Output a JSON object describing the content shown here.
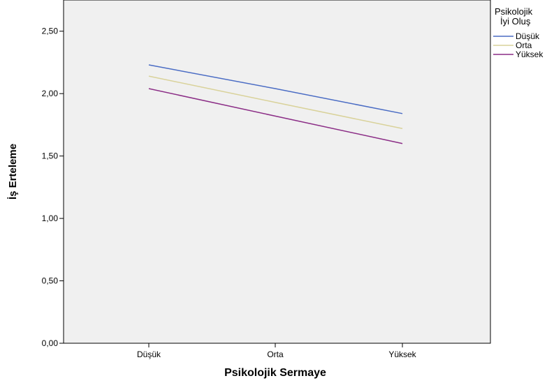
{
  "chart_data": {
    "type": "line",
    "categories": [
      "Düşük",
      "Orta",
      "Yüksek"
    ],
    "xlabel": "Psikolojik Sermaye",
    "ylabel": "İş Erteleme",
    "ylim": [
      0,
      2.75
    ],
    "yticks": [
      "0,00",
      "0,50",
      "1,00",
      "1,50",
      "2,00",
      "2,50"
    ],
    "ytick_values": [
      0,
      0.5,
      1.0,
      1.5,
      2.0,
      2.5
    ],
    "grid": false,
    "legend": {
      "title_line1": "Psikolojik",
      "title_line2": "İyi Oluş",
      "placement": "right"
    },
    "series": [
      {
        "name": "Düşük",
        "values": [
          2.23,
          2.04,
          1.84
        ],
        "color": "#4a6cc4"
      },
      {
        "name": "Orta",
        "values": [
          2.14,
          1.93,
          1.72
        ],
        "color": "#d9d29a"
      },
      {
        "name": "Yüksek",
        "values": [
          2.04,
          1.82,
          1.6
        ],
        "color": "#8b2d86"
      }
    ],
    "colors": {
      "plot_background": "#f0f0f0",
      "axis": "#000000"
    }
  }
}
